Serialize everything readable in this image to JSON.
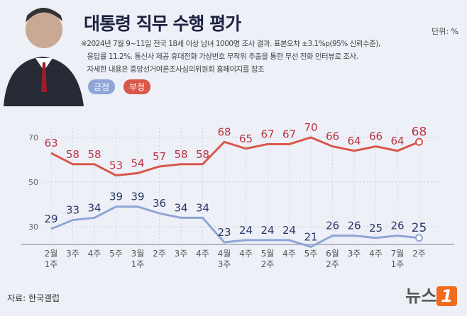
{
  "title": "대통령 직무 수행 평가",
  "unit": "단위: %",
  "note": [
    "※2024년 7월 9~11일 전국 18세 이상 남녀 1000명 조사 결과. 표본오차 ±3.1%p(95% 신뢰수준),",
    "   응답률 11.2%. 통신사 제공 휴대전화 가상번호 무작위 추출을 통한 무선 전화 인터뷰로 조사.",
    "   자세한 내용은 중앙선거여론조사심의위원회 홈페이지를 참조"
  ],
  "source": "자료: 한국갤럽",
  "logo": "뉴스1",
  "chart_data": {
    "type": "line",
    "categories": [
      "2월 1주",
      "3주",
      "4주",
      "5주",
      "3월 1주",
      "2주",
      "3주",
      "4주",
      "4월 3주",
      "4주",
      "5월 2주",
      "4주",
      "5주",
      "6월 2주",
      "3주",
      "4주",
      "7월 1주",
      "2주"
    ],
    "yticks": [
      30,
      50,
      70
    ],
    "ylim": [
      20,
      75
    ],
    "series": [
      {
        "name": "긍정",
        "color": "#8fa6d6",
        "label_color": "#2b3866",
        "values": [
          29,
          33,
          34,
          39,
          39,
          36,
          34,
          34,
          23,
          24,
          24,
          24,
          21,
          26,
          26,
          25,
          26,
          25
        ]
      },
      {
        "name": "부정",
        "color": "#d9574a",
        "label_color": "#b8343f",
        "values": [
          63,
          58,
          58,
          53,
          54,
          57,
          58,
          58,
          68,
          65,
          67,
          67,
          70,
          66,
          64,
          66,
          64,
          68
        ]
      }
    ]
  }
}
